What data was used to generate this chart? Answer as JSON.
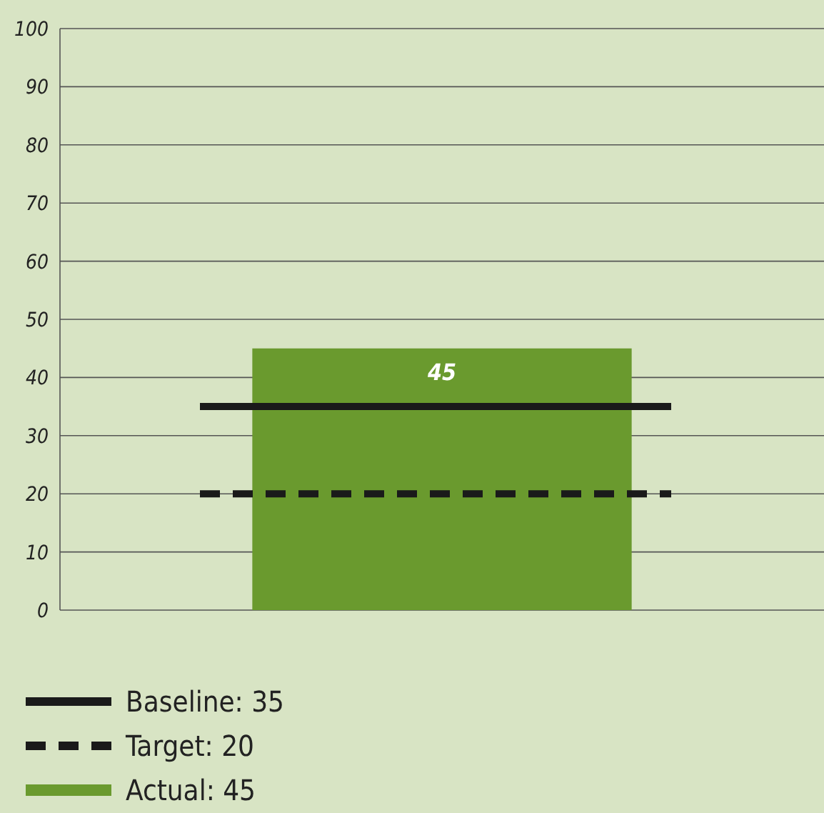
{
  "chart_data": {
    "type": "bar",
    "categories": [
      null
    ],
    "series": [
      {
        "name": "Actual: 45",
        "color": "#6a9a2e",
        "values": [
          45
        ]
      }
    ],
    "ylim": [
      0,
      100
    ],
    "yticks": [
      0,
      10,
      20,
      30,
      40,
      50,
      60,
      70,
      80,
      90,
      100
    ],
    "grid": "y",
    "data_labels": true,
    "legend": "bottom",
    "ref_lines": [
      {
        "axis": "y",
        "value": 35,
        "label": "Baseline: 35",
        "color": "#1a1a1a",
        "line_style": "solid"
      },
      {
        "axis": "y",
        "value": 20,
        "label": "Target: 20",
        "color": "#1a1a1a",
        "line_style": "dashed"
      }
    ]
  }
}
